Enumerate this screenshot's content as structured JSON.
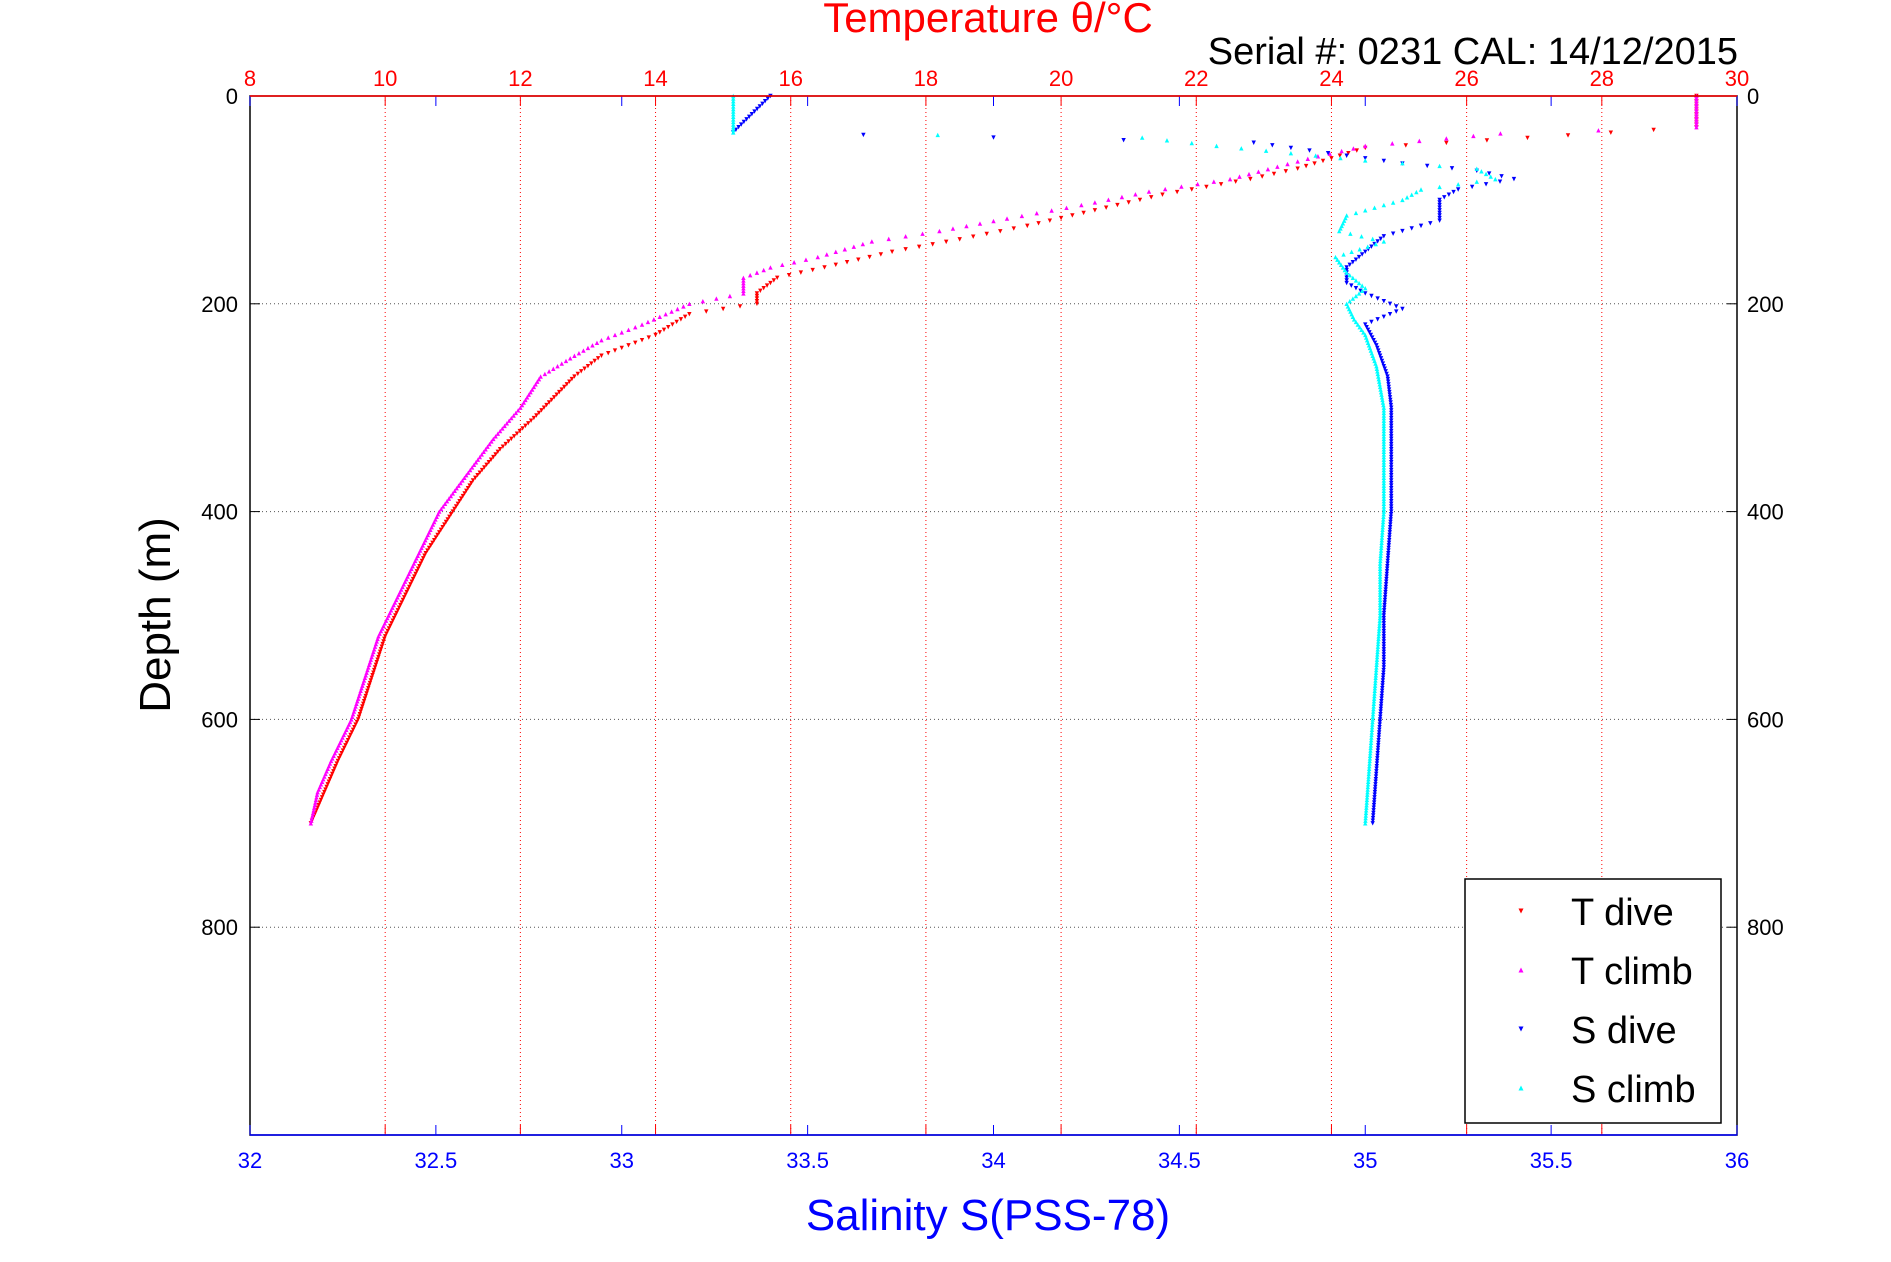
{
  "chart_data": {
    "type": "scatter",
    "title": "Temperature θ/°C",
    "subtitle": "Serial #: 0231  CAL: 14/12/2015",
    "xlabel": "Salinity S(PSS-78)",
    "x2label": "Temperature θ/°C",
    "ylabel": "Depth (m)",
    "xlim": [
      32,
      36
    ],
    "x2lim": [
      8,
      30
    ],
    "ylim": [
      0,
      1000
    ],
    "y_inverted": true,
    "x_ticks": [
      "32",
      "32.5",
      "33",
      "33.5",
      "34",
      "34.5",
      "35",
      "35.5",
      "36"
    ],
    "x2_ticks": [
      "8",
      "10",
      "12",
      "14",
      "16",
      "18",
      "20",
      "22",
      "24",
      "26",
      "28",
      "30"
    ],
    "y_ticks": [
      "0",
      "200",
      "400",
      "600",
      "800"
    ],
    "grid": true,
    "legend_position": "bottom-right",
    "colors": {
      "temperature_axis": "#ff0000",
      "salinity_axis": "#0000ff",
      "depth_axis": "#000000",
      "grid": "#808080"
    },
    "series": [
      {
        "name": "T dive",
        "axis": "temperature",
        "color": "#ff0000",
        "marker": "triangle-down",
        "points": [
          [
            29.4,
            0
          ],
          [
            29.4,
            30
          ],
          [
            27.5,
            38
          ],
          [
            24.5,
            50
          ],
          [
            24,
            60
          ],
          [
            23.5,
            70
          ],
          [
            22.8,
            80
          ],
          [
            21.5,
            95
          ],
          [
            20.5,
            110
          ],
          [
            19.5,
            125
          ],
          [
            18.5,
            138
          ],
          [
            17.5,
            150
          ],
          [
            16.5,
            165
          ],
          [
            15.8,
            175
          ],
          [
            15.5,
            190
          ],
          [
            15.5,
            200
          ],
          [
            14.5,
            210
          ],
          [
            14,
            230
          ],
          [
            13.2,
            250
          ],
          [
            12.8,
            270
          ],
          [
            12.5,
            290
          ],
          [
            12.2,
            310
          ],
          [
            11.7,
            340
          ],
          [
            11.3,
            370
          ],
          [
            10.9,
            410
          ],
          [
            10.6,
            440
          ],
          [
            10.3,
            480
          ],
          [
            10,
            520
          ],
          [
            9.8,
            560
          ],
          [
            9.6,
            600
          ],
          [
            9.3,
            640
          ],
          [
            9.1,
            670
          ],
          [
            8.9,
            700
          ]
        ]
      },
      {
        "name": "T climb",
        "axis": "temperature",
        "color": "#ff00ff",
        "marker": "triangle-up",
        "points": [
          [
            29.4,
            0
          ],
          [
            29.4,
            30
          ],
          [
            26.5,
            36
          ],
          [
            24.5,
            48
          ],
          [
            23.8,
            58
          ],
          [
            23.2,
            68
          ],
          [
            22.5,
            80
          ],
          [
            21.3,
            92
          ],
          [
            20.3,
            105
          ],
          [
            19.2,
            118
          ],
          [
            18.2,
            130
          ],
          [
            17.2,
            140
          ],
          [
            16.4,
            155
          ],
          [
            15.7,
            165
          ],
          [
            15.3,
            175
          ],
          [
            15.3,
            190
          ],
          [
            14.5,
            200
          ],
          [
            13.8,
            220
          ],
          [
            13.2,
            235
          ],
          [
            12.8,
            250
          ],
          [
            12.3,
            270
          ],
          [
            12,
            300
          ],
          [
            11.6,
            330
          ],
          [
            11.2,
            365
          ],
          [
            10.8,
            400
          ],
          [
            10.5,
            440
          ],
          [
            10.2,
            480
          ],
          [
            9.9,
            520
          ],
          [
            9.7,
            560
          ],
          [
            9.5,
            600
          ],
          [
            9.2,
            640
          ],
          [
            9,
            670
          ],
          [
            8.9,
            700
          ]
        ]
      },
      {
        "name": "S dive",
        "axis": "salinity",
        "color": "#0000ff",
        "marker": "triangle-down",
        "points": [
          [
            33.4,
            0
          ],
          [
            33.3,
            35
          ],
          [
            34.7,
            45
          ],
          [
            34.9,
            55
          ],
          [
            35.1,
            65
          ],
          [
            35.3,
            72
          ],
          [
            35.4,
            80
          ],
          [
            35.25,
            90
          ],
          [
            35.2,
            100
          ],
          [
            35.2,
            120
          ],
          [
            35.05,
            135
          ],
          [
            35.0,
            150
          ],
          [
            34.95,
            165
          ],
          [
            34.95,
            180
          ],
          [
            35.0,
            190
          ],
          [
            35.1,
            205
          ],
          [
            35.0,
            220
          ],
          [
            35.03,
            240
          ],
          [
            35.06,
            270
          ],
          [
            35.07,
            300
          ],
          [
            35.07,
            350
          ],
          [
            35.07,
            400
          ],
          [
            35.06,
            450
          ],
          [
            35.05,
            500
          ],
          [
            35.05,
            550
          ],
          [
            35.04,
            600
          ],
          [
            35.03,
            650
          ],
          [
            35.02,
            700
          ]
        ]
      },
      {
        "name": "S climb",
        "axis": "salinity",
        "color": "#00ffff",
        "marker": "triangle-up",
        "points": [
          [
            33.3,
            0
          ],
          [
            33.3,
            35
          ],
          [
            34.4,
            40
          ],
          [
            34.6,
            48
          ],
          [
            34.8,
            55
          ],
          [
            35.0,
            62
          ],
          [
            35.3,
            70
          ],
          [
            35.35,
            80
          ],
          [
            35.15,
            90
          ],
          [
            35.1,
            100
          ],
          [
            34.95,
            115
          ],
          [
            34.93,
            130
          ],
          [
            35.05,
            140
          ],
          [
            34.92,
            155
          ],
          [
            34.95,
            170
          ],
          [
            35.0,
            185
          ],
          [
            34.95,
            200
          ],
          [
            34.97,
            215
          ],
          [
            35.0,
            230
          ],
          [
            35.03,
            260
          ],
          [
            35.05,
            300
          ],
          [
            35.05,
            350
          ],
          [
            35.05,
            400
          ],
          [
            35.04,
            450
          ],
          [
            35.04,
            500
          ],
          [
            35.03,
            550
          ],
          [
            35.02,
            600
          ],
          [
            35.01,
            650
          ],
          [
            35.0,
            700
          ]
        ]
      }
    ]
  }
}
